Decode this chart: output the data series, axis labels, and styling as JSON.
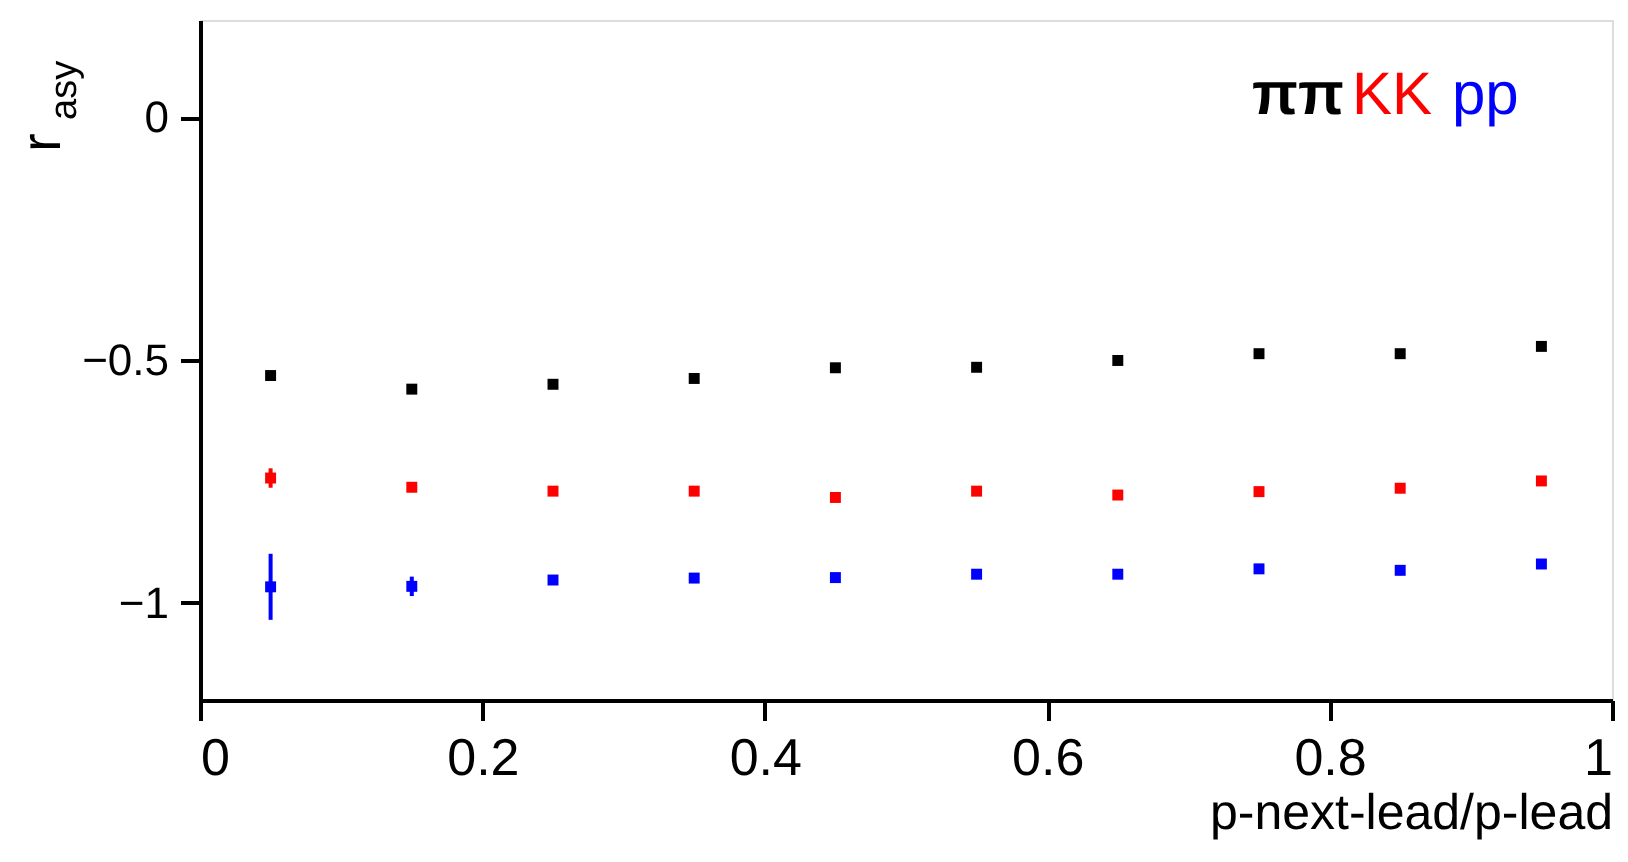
{
  "chart_data": {
    "type": "scatter",
    "ylabel": "r$_{asy}$",
    "xlabel": "p-next-lead/p-lead",
    "x": [
      0.05,
      0.15,
      0.25,
      0.35,
      0.45,
      0.55,
      0.65,
      0.75,
      0.85,
      0.95
    ],
    "series": [
      {
        "name": "ππ",
        "color": "#000000",
        "values": [
          -0.532,
          -0.56,
          -0.55,
          -0.538,
          -0.516,
          -0.515,
          -0.501,
          -0.487,
          -0.487,
          -0.472
        ]
      },
      {
        "name": "KK",
        "color": "#ff0000",
        "values": [
          -0.743,
          -0.762,
          -0.77,
          -0.77,
          -0.783,
          -0.77,
          -0.778,
          -0.771,
          -0.764,
          -0.749
        ],
        "errors": [
          0.02,
          0.01,
          0.01,
          0.01,
          0.01,
          0.01,
          0.01,
          0.01,
          0.01,
          0.01
        ]
      },
      {
        "name": "pp",
        "color": "#0000ff",
        "values": [
          -0.967,
          -0.966,
          -0.953,
          -0.949,
          -0.948,
          -0.941,
          -0.941,
          -0.93,
          -0.933,
          -0.92
        ],
        "errors": [
          0.068,
          0.02,
          0.01,
          0.01,
          0.01,
          0.01,
          0.01,
          0.01,
          0.01,
          0.01
        ]
      }
    ],
    "xlim": [
      0,
      1
    ],
    "xticks": [
      0,
      0.2,
      0.4,
      0.6,
      0.8,
      1
    ],
    "ylim": [
      -1.2,
      0.2
    ],
    "yticks": [
      {
        "value": -1,
        "label": "−1"
      },
      {
        "value": -0.5,
        "label": "−0.5"
      },
      0
    ],
    "grid": false,
    "legend": "top right",
    "marker": "square"
  }
}
